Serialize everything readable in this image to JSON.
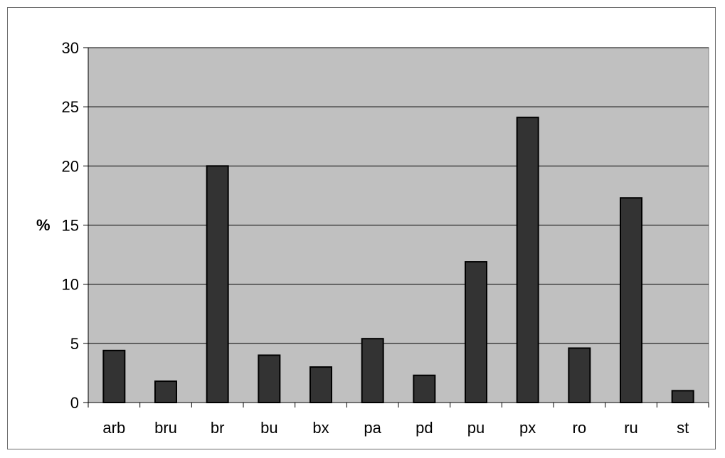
{
  "chart_data": {
    "type": "bar",
    "title": "",
    "xlabel": "",
    "ylabel": "%",
    "ylim": [
      0,
      30
    ],
    "yticks": [
      0,
      5,
      10,
      15,
      20,
      25,
      30
    ],
    "grid": true,
    "legend": "none",
    "categories": [
      "arb",
      "bru",
      "br",
      "bu",
      "bx",
      "pa",
      "pd",
      "pu",
      "px",
      "ro",
      "ru",
      "st"
    ],
    "values": [
      4.4,
      1.8,
      20.0,
      4.0,
      3.0,
      5.4,
      2.3,
      11.9,
      24.1,
      4.6,
      17.3,
      1.0
    ]
  },
  "colors": {
    "plot_background": "#c0c0c0",
    "bar_fill": "#333333",
    "bar_stroke": "#000000",
    "gridline": "#000000"
  }
}
